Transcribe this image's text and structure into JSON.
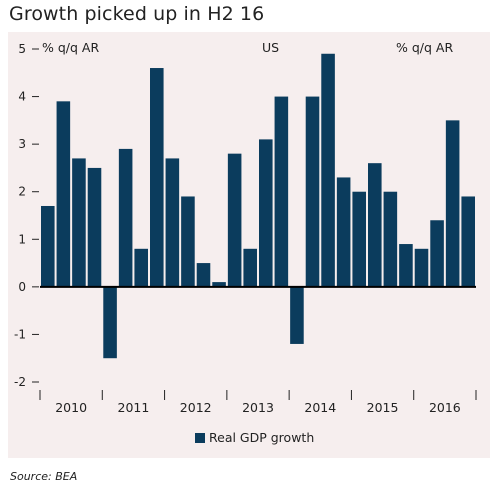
{
  "title": "Growth picked up in H2 16",
  "source": "Source: BEA",
  "colors": {
    "bar": "#0b3c5d",
    "background": "#f6eeee",
    "zero_line": "#000000"
  },
  "chart_data": {
    "type": "bar",
    "title": "Growth picked up in H2 16",
    "left_axis_label": "% q/q AR",
    "right_axis_label": "% q/q AR",
    "panel_label": "US",
    "ylim": [
      -2,
      5
    ],
    "y_ticks": [
      5,
      4,
      3,
      2,
      1,
      0,
      -1,
      -2
    ],
    "grid": false,
    "legend_position": "bottom-center",
    "year_labels": [
      "2010",
      "2011",
      "2012",
      "2013",
      "2014",
      "2015",
      "2016"
    ],
    "quarters": [
      "2010Q1",
      "2010Q2",
      "2010Q3",
      "2010Q4",
      "2011Q1",
      "2011Q2",
      "2011Q3",
      "2011Q4",
      "2012Q1",
      "2012Q2",
      "2012Q3",
      "2012Q4",
      "2013Q1",
      "2013Q2",
      "2013Q3",
      "2013Q4",
      "2014Q1",
      "2014Q2",
      "2014Q3",
      "2014Q4",
      "2015Q1",
      "2015Q2",
      "2015Q3",
      "2015Q4",
      "2016Q1",
      "2016Q2",
      "2016Q3",
      "2016Q4"
    ],
    "series": [
      {
        "name": "Real GDP growth",
        "values": [
          1.7,
          3.9,
          2.7,
          2.5,
          -1.5,
          2.9,
          0.8,
          4.6,
          2.7,
          1.9,
          0.5,
          0.1,
          2.8,
          0.8,
          3.1,
          4.0,
          -1.2,
          4.0,
          4.9,
          2.3,
          2.0,
          2.6,
          2.0,
          0.9,
          0.8,
          1.4,
          3.5,
          1.9
        ]
      }
    ]
  }
}
